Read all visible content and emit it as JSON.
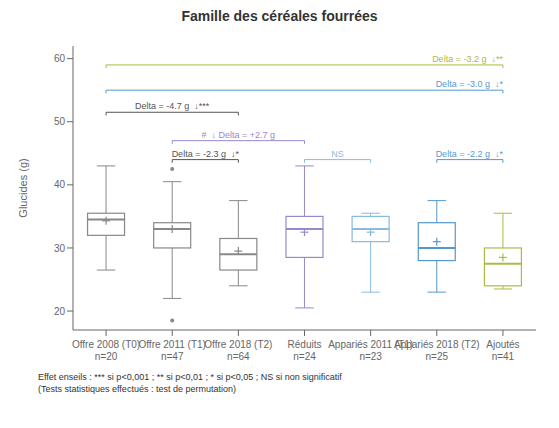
{
  "chart_data": {
    "type": "box",
    "title": "Famille des céréales fourrées",
    "ylabel": "Glucides (g)",
    "ylim": [
      17,
      62
    ],
    "yticks": [
      20,
      30,
      40,
      50,
      60
    ],
    "categories": [
      "Offre 2008 (T0)\nn=20",
      "Offre 2011 (T1)\nn=47",
      "Offre 2018 (T2)\nn=64",
      "Réduits\nn=24",
      "Appariés 2011 (T1)\nn=23",
      "Appariés 2018 (T2)\nn=25",
      "Ajoutés\nn=41"
    ],
    "colors": [
      "#888888",
      "#888888",
      "#888888",
      "#9988cc",
      "#88bbdd",
      "#5599cc",
      "#aabb44"
    ],
    "median": [
      34.5,
      33.0,
      29.0,
      33.0,
      33.0,
      30.0,
      27.5
    ],
    "q1": [
      32.0,
      30.0,
      26.5,
      28.5,
      31.0,
      28.0,
      24.0
    ],
    "q3": [
      35.5,
      34.0,
      31.5,
      35.0,
      35.0,
      34.0,
      30.0
    ],
    "whislo": [
      26.5,
      22.0,
      24.0,
      20.5,
      23.0,
      23.0,
      23.5
    ],
    "whishi": [
      43.0,
      40.5,
      37.5,
      43.0,
      35.5,
      37.5,
      35.5
    ],
    "mean": [
      34.3,
      33.0,
      29.5,
      32.5,
      32.5,
      31.0,
      28.5
    ],
    "fliers": [
      [],
      [
        18.5,
        42.5
      ],
      [],
      [],
      [],
      [],
      []
    ],
    "annotations": [
      {
        "x1": 1,
        "x2": 7,
        "y": 59.0,
        "text": "Delta = -3.2 g  ↓**",
        "color": "#aabb44",
        "align": "right"
      },
      {
        "x1": 1,
        "x2": 7,
        "y": 55.0,
        "text": "Delta = -3.0 g  ↓*",
        "color": "#5599cc",
        "align": "right"
      },
      {
        "x1": 1,
        "x2": 3,
        "y": 51.5,
        "text": "Delta = -4.7 g  ↓***",
        "color": "#555555",
        "align": "center"
      },
      {
        "x1": 2,
        "x2": 4,
        "y": 47.0,
        "text": "#  ↓ Delta = +2.7 g",
        "color": "#9988cc",
        "align": "center"
      },
      {
        "x1": 2,
        "x2": 3,
        "y": 44.0,
        "text": "Delta = -2.3 g  ↓*",
        "color": "#555555",
        "align": "center"
      },
      {
        "x1": 4,
        "x2": 5,
        "y": 44.0,
        "text": "NS",
        "color": "#88bbdd",
        "align": "center"
      },
      {
        "x1": 6,
        "x2": 7,
        "y": 44.0,
        "text": "Delta = -2.2 g  ↓*",
        "color": "#5599cc",
        "align": "right"
      }
    ],
    "footnotes": [
      "Effet enseils : *** si p<0,001 ; ** si p<0,01 ; * si p<0,05 ; NS si non significatif",
      "(Tests statistiques effectués : test de permutation)"
    ]
  }
}
